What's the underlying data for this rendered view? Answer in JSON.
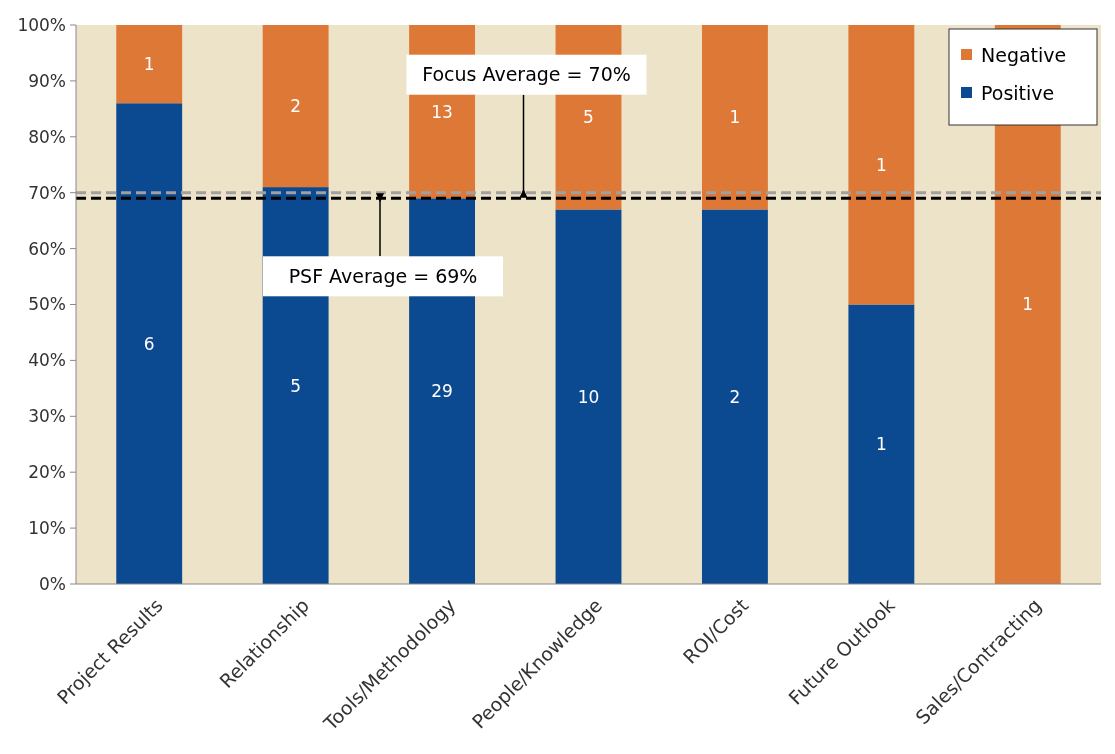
{
  "chart_data": {
    "type": "bar",
    "stacked": true,
    "categories": [
      "Project Results",
      "Relationship",
      "Tools/Methodology",
      "People/Knowledge",
      "ROI/Cost",
      "Future Outlook",
      "Sales/Contracting"
    ],
    "series": [
      {
        "name": "Positive",
        "color": "#0b4a90",
        "values": [
          86,
          71,
          69,
          67,
          67,
          50,
          0
        ]
      },
      {
        "name": "Negative",
        "color": "#dd7836",
        "values": [
          14,
          29,
          31,
          33,
          33,
          50,
          100
        ]
      }
    ],
    "annotations": [
      "6",
      "5",
      "29",
      "10",
      "2",
      "1",
      "1",
      "2",
      "13",
      "5",
      "1",
      "1",
      "1"
    ],
    "ylim": [
      0,
      100
    ],
    "yticks": [
      {
        "value": 0,
        "label": "0%"
      },
      {
        "value": 10,
        "label": "10%"
      },
      {
        "value": 20,
        "label": "20%"
      },
      {
        "value": 30,
        "label": "30%"
      },
      {
        "value": 40,
        "label": "40%"
      },
      {
        "value": 50,
        "label": "50%"
      },
      {
        "value": 60,
        "label": "60%"
      },
      {
        "value": 70,
        "label": "70%"
      },
      {
        "value": 80,
        "label": "80%"
      },
      {
        "value": 90,
        "label": "90%"
      },
      {
        "value": 100,
        "label": "100%"
      }
    ],
    "ref_lines": [
      {
        "axis": "y",
        "value": 70,
        "label": "Focus Average = 70%",
        "color": "#a0a0a0",
        "line_style": "dashed"
      },
      {
        "axis": "y",
        "value": 69,
        "label": "PSF Average = 69%",
        "color": "#000000",
        "line_style": "dashed"
      }
    ],
    "legend": "top right",
    "grid": false
  }
}
